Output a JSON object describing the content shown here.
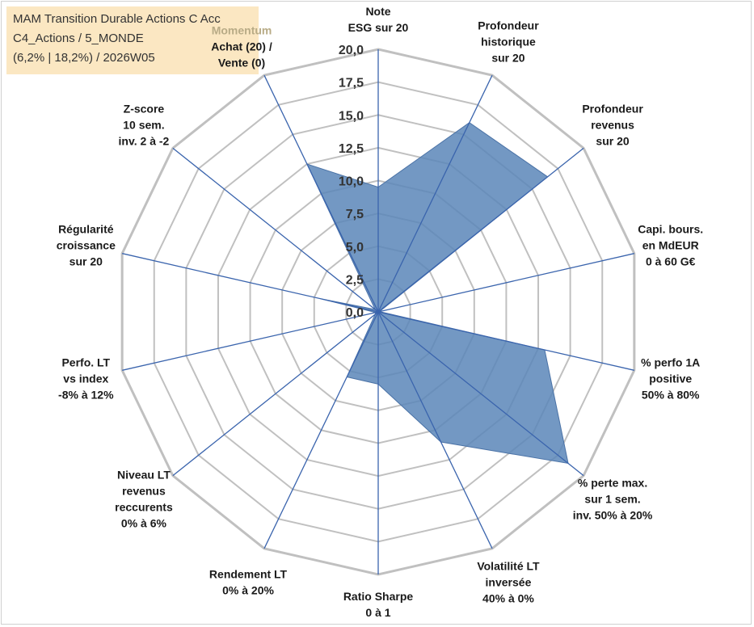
{
  "info": {
    "line1": "MAM Transition Durable Actions C Acc",
    "line2": "C4_Actions / 5_MONDE",
    "line3": "(6,2% | 18,2%) / 2026W05"
  },
  "chart_data": {
    "type": "radar",
    "title": "",
    "rmin": 0,
    "rmax": 20,
    "tick_step": 2.5,
    "tick_labels": [
      "0,0",
      "2,5",
      "5,0",
      "7,5",
      "10,0",
      "12,5",
      "15,0",
      "17,5",
      "20,0"
    ],
    "axes": [
      {
        "label": [
          "Note",
          "ESG sur 20"
        ],
        "value": 9.5
      },
      {
        "label": [
          "Profondeur",
          "historique",
          "sur 20"
        ],
        "value": 16.0
      },
      {
        "label": [
          "Profondeur",
          "revenus",
          "sur 20"
        ],
        "value": 16.5
      },
      {
        "label": [
          "Capi. bours.",
          "en MdEUR",
          "0 à 60 G€"
        ],
        "value": 0.1
      },
      {
        "label": [
          "% perfo 1A",
          "positive",
          "50% à 80%"
        ],
        "value": 13.0
      },
      {
        "label": [
          "% perte max.",
          "sur 1 sem.",
          "inv. 50% à 20%"
        ],
        "value": 18.5
      },
      {
        "label": [
          "Volatilité LT",
          "inversée",
          "40% à 0%"
        ],
        "value": 11.0
      },
      {
        "label": [
          "Ratio Sharpe",
          "0 à 1"
        ],
        "value": 5.5
      },
      {
        "label": [
          "Rendement LT",
          "0% à 20%"
        ],
        "value": 5.5
      },
      {
        "label": [
          "Niveau LT",
          "revenus",
          "reccurents",
          "0% à 6%"
        ],
        "value": 0.3
      },
      {
        "label": [
          "Perfo. LT",
          "vs index",
          "-8% à 12%"
        ],
        "value": 0.2
      },
      {
        "label": [
          "Régularité",
          "croissance",
          "sur 20"
        ],
        "value": 4.5
      },
      {
        "label": [
          "Z-score",
          "10 sem.",
          "inv. 2 à -2"
        ],
        "value": 0.3
      },
      {
        "label": [
          "Momentum",
          "Achat (20) /",
          "Vente (0)"
        ],
        "value": 12.5
      }
    ],
    "highlight_lines": [
      [
        "Momentum",
        "Achat (20)"
      ]
    ],
    "series": [
      {
        "values_key": "axes.value"
      }
    ],
    "colors": {
      "fill": "#5b86b8",
      "stroke": "#4a72a6",
      "grid": "#c0c0c0",
      "spokes": "#3a64ad"
    }
  }
}
